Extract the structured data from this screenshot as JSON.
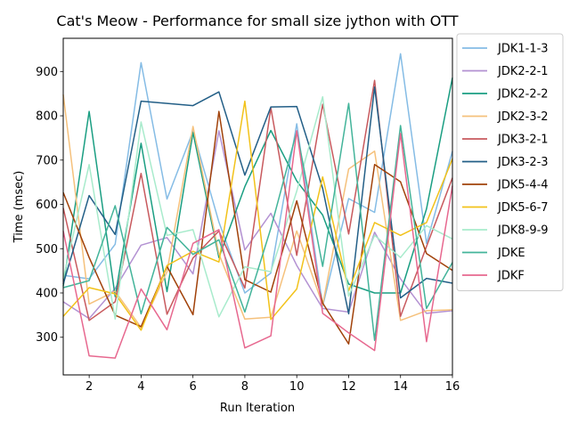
{
  "chart_data": {
    "type": "line",
    "title": "Cat's Meow - Performance for small size jython with OTT",
    "xlabel": "Run Iteration",
    "ylabel": "Time (msec)",
    "xlim": [
      1,
      16
    ],
    "ylim": [
      215,
      975
    ],
    "x": [
      1,
      2,
      3,
      4,
      5,
      6,
      7,
      8,
      9,
      10,
      11,
      12,
      13,
      14,
      15,
      16
    ],
    "xticks": [
      2,
      4,
      6,
      8,
      10,
      12,
      14,
      16
    ],
    "yticks": [
      300,
      400,
      500,
      600,
      700,
      800,
      900
    ],
    "grid": false,
    "legend_position": "outside-right",
    "series": [
      {
        "name": "JDK1-1-3",
        "color": "#85bce5",
        "values": [
          440,
          432,
          510,
          920,
          612,
          765,
          560,
          400,
          445,
          782,
          370,
          613,
          582,
          940,
          512,
          720
        ]
      },
      {
        "name": "JDK2-2-1",
        "color": "#b391d2",
        "values": [
          380,
          342,
          410,
          508,
          525,
          443,
          766,
          497,
          580,
          462,
          365,
          357,
          537,
          432,
          354,
          360
        ]
      },
      {
        "name": "JDK2-2-2",
        "color": "#1a9e82",
        "values": [
          415,
          810,
          392,
          738,
          403,
          762,
          480,
          640,
          767,
          653,
          576,
          420,
          400,
          400,
          590,
          886
        ]
      },
      {
        "name": "JDK2-3-2",
        "color": "#f5c17c",
        "values": [
          848,
          375,
          404,
          322,
          448,
          776,
          488,
          341,
          345,
          540,
          373,
          680,
          720,
          338,
          360,
          362
        ]
      },
      {
        "name": "JDK3-2-1",
        "color": "#c85a5e",
        "values": [
          592,
          338,
          380,
          670,
          352,
          479,
          540,
          411,
          818,
          485,
          826,
          533,
          880,
          347,
          505,
          660
        ]
      },
      {
        "name": "JDK3-2-3",
        "color": "#235f87",
        "values": [
          420,
          620,
          532,
          833,
          828,
          823,
          854,
          666,
          820,
          821,
          636,
          353,
          865,
          389,
          433,
          422
        ]
      },
      {
        "name": "JDK5-4-4",
        "color": "#a1420a",
        "values": [
          627,
          480,
          350,
          324,
          460,
          351,
          810,
          430,
          402,
          608,
          377,
          285,
          690,
          651,
          489,
          451
        ]
      },
      {
        "name": "JDK5-6-7",
        "color": "#f2c21a",
        "values": [
          347,
          412,
          398,
          316,
          462,
          494,
          470,
          833,
          340,
          409,
          662,
          405,
          559,
          530,
          559,
          703
        ]
      },
      {
        "name": "JDK8-9-9",
        "color": "#a8ebcc",
        "values": [
          432,
          690,
          341,
          786,
          530,
          543,
          346,
          459,
          448,
          630,
          843,
          393,
          530,
          480,
          552,
          522
        ]
      },
      {
        "name": "JDKE",
        "color": "#43b49a",
        "values": [
          412,
          428,
          597,
          353,
          548,
          487,
          520,
          357,
          546,
          765,
          460,
          828,
          293,
          778,
          365,
          469
        ]
      },
      {
        "name": "JDKF",
        "color": "#e7688f",
        "values": [
          540,
          258,
          253,
          409,
          317,
          512,
          543,
          276,
          303,
          766,
          354,
          310,
          270,
          760,
          290,
          642
        ]
      }
    ]
  }
}
